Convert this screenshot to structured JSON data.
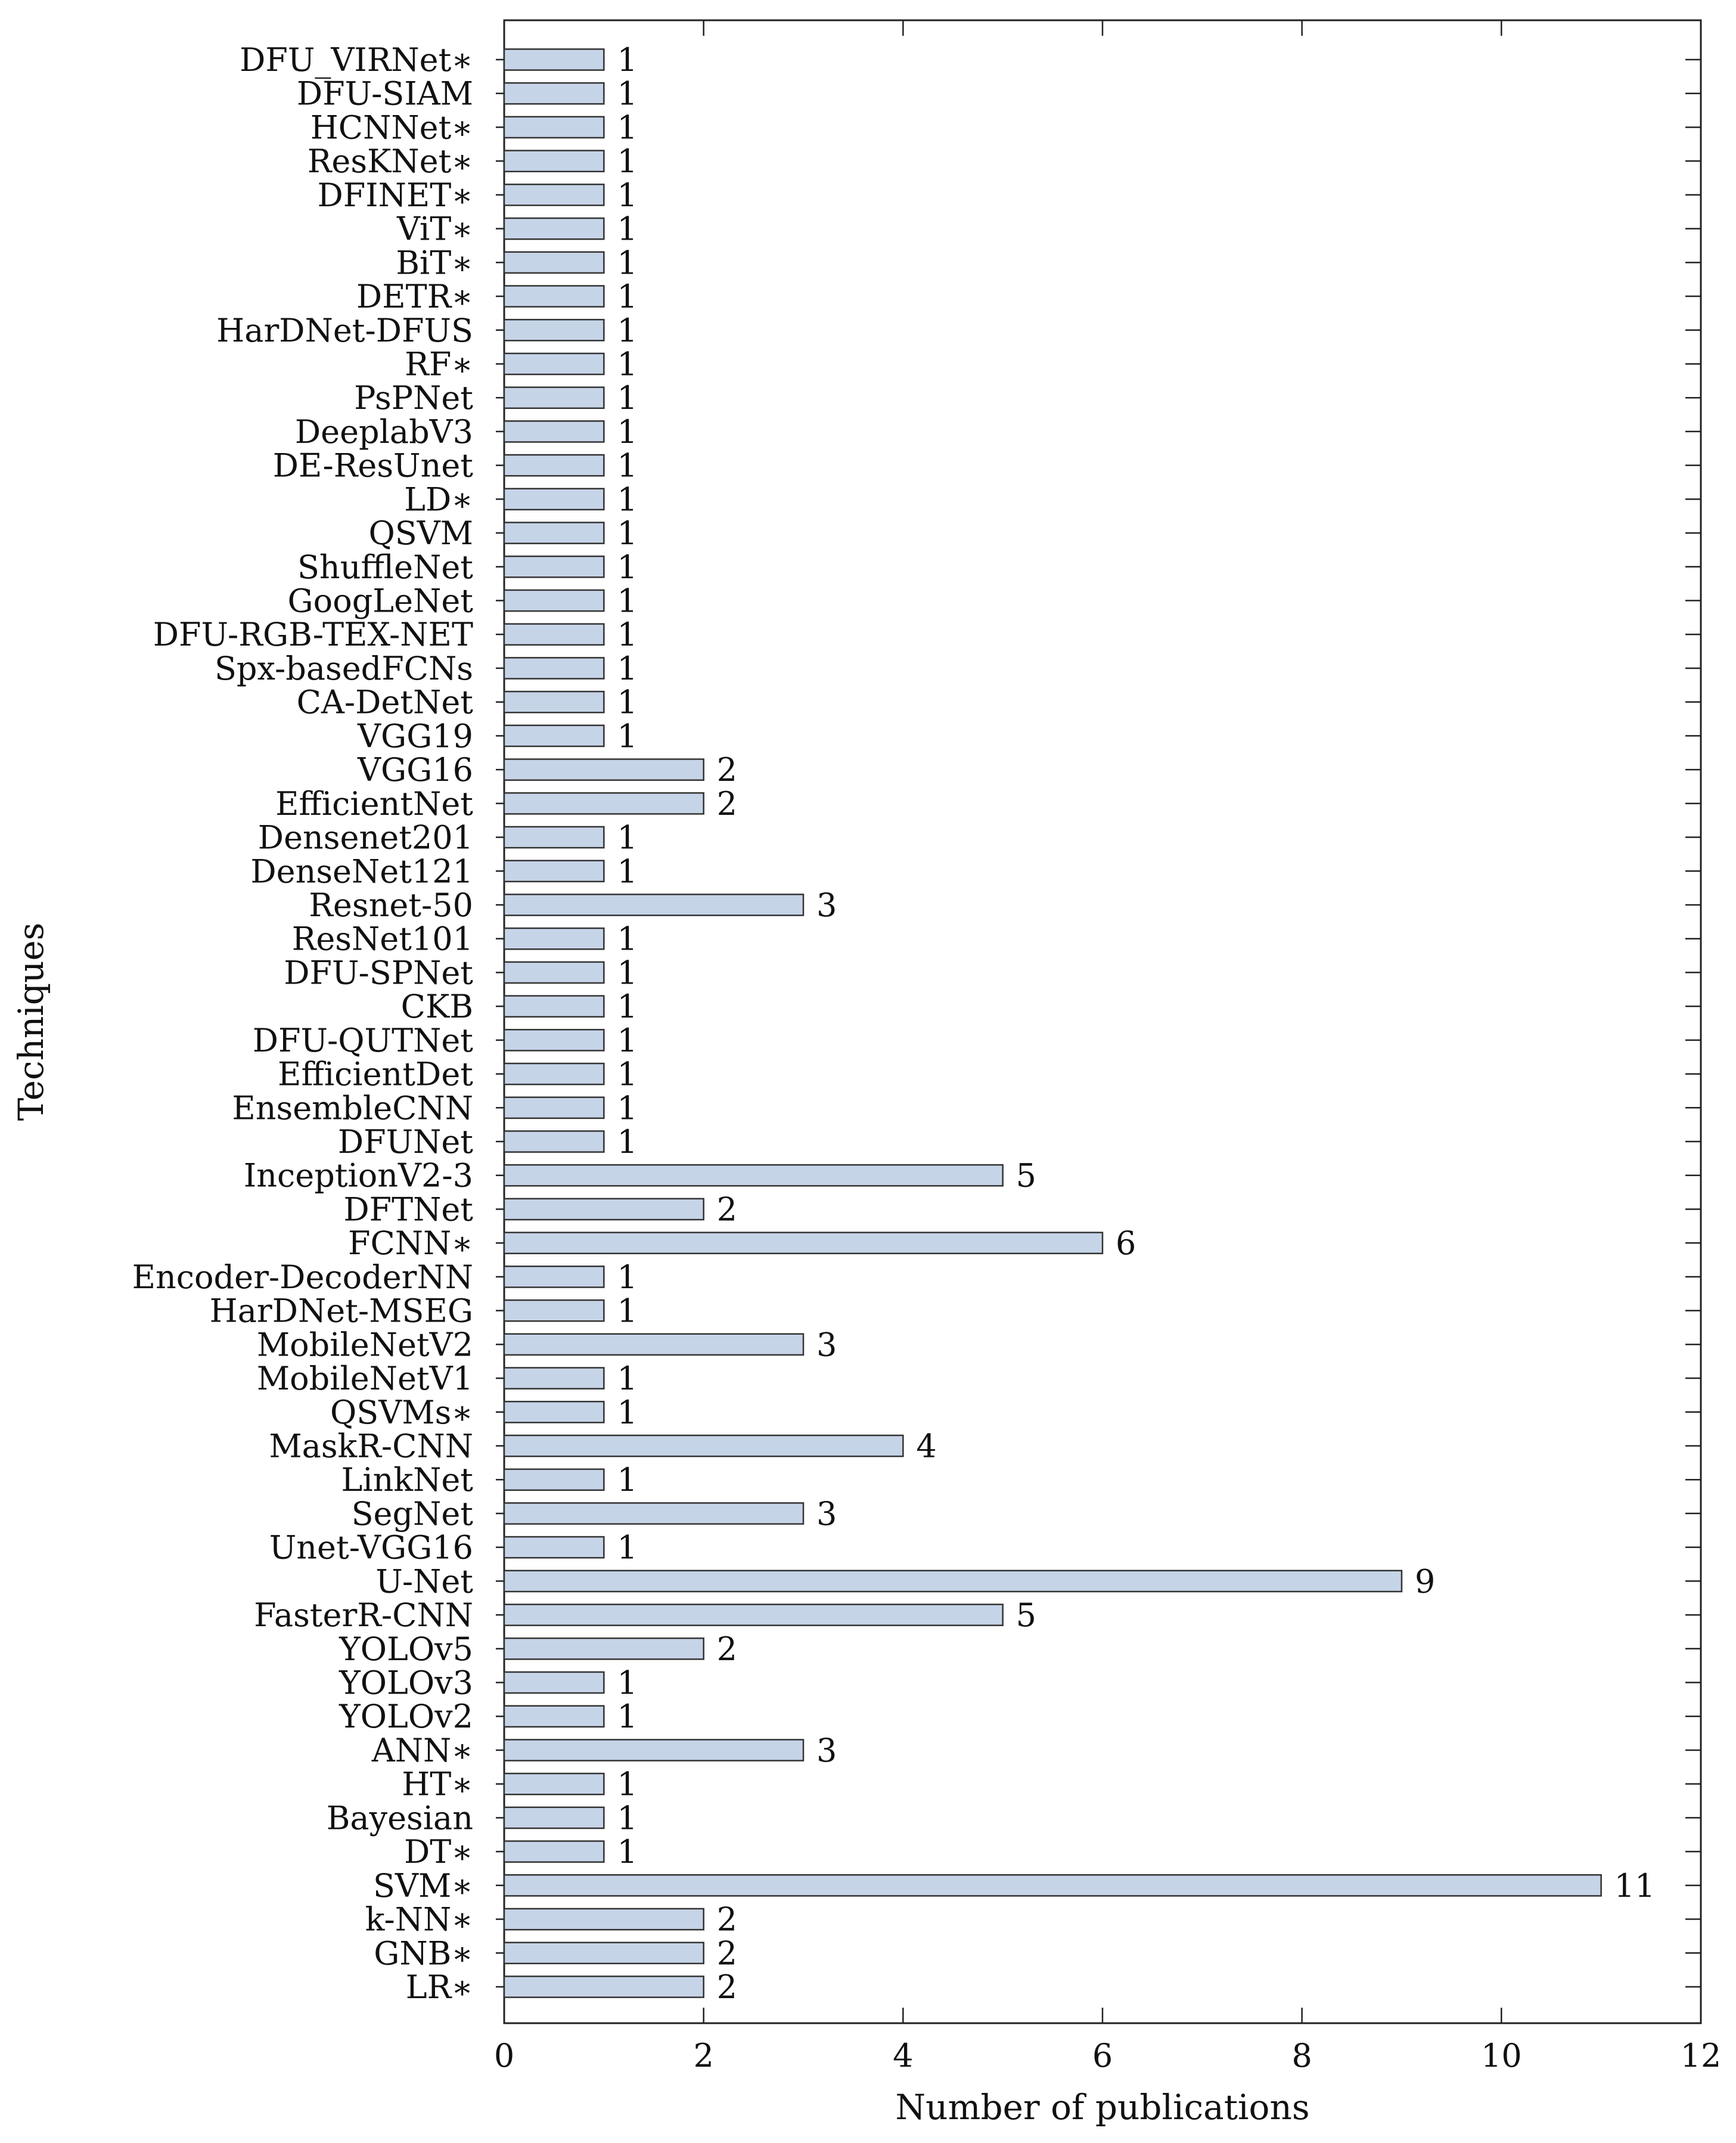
{
  "chart_data": {
    "type": "bar",
    "orientation": "horizontal",
    "title": "",
    "xlabel": "Number of publications",
    "ylabel": "Techniques",
    "xlim": [
      0,
      12
    ],
    "xticks": [
      0,
      2,
      4,
      6,
      8,
      10,
      12
    ],
    "grid": false,
    "bar_color": "#c6d4e8",
    "bar_edge_color": "#333333",
    "categories": [
      "DFU_VIRNet∗",
      "DFU-SIAM",
      "HCNNet∗",
      "ResKNet∗",
      "DFINET∗",
      "ViT∗",
      "BiT∗",
      "DETR∗",
      "HarDNet-DFUS",
      "RF∗",
      "PsPNet",
      "DeeplabV3",
      "DE-ResUnet",
      "LD∗",
      "QSVM",
      "ShuffleNet",
      "GoogLeNet",
      "DFU-RGB-TEX-NET",
      "Spx-basedFCNs",
      "CA-DetNet",
      "VGG19",
      "VGG16",
      "EfficientNet",
      "Densenet201",
      "DenseNet121",
      "Resnet-50",
      "ResNet101",
      "DFU-SPNet",
      "CKB",
      "DFU-QUTNet",
      "EfficientDet",
      "EnsembleCNN",
      "DFUNet",
      "InceptionV2-3",
      "DFTNet",
      "FCNN∗",
      "Encoder-DecoderNN",
      "HarDNet-MSEG",
      "MobileNetV2",
      "MobileNetV1",
      "QSVMs∗",
      "MaskR-CNN",
      "LinkNet",
      "SegNet",
      "Unet-VGG16",
      "U-Net",
      "FasterR-CNN",
      "YOLOv5",
      "YOLOv3",
      "YOLOv2",
      "ANN∗",
      "HT∗",
      "Bayesian",
      "DT∗",
      "SVM∗",
      "k-NN∗",
      "GNB∗",
      "LR∗"
    ],
    "values": [
      1,
      1,
      1,
      1,
      1,
      1,
      1,
      1,
      1,
      1,
      1,
      1,
      1,
      1,
      1,
      1,
      1,
      1,
      1,
      1,
      1,
      2,
      2,
      1,
      1,
      3,
      1,
      1,
      1,
      1,
      1,
      1,
      1,
      5,
      2,
      6,
      1,
      1,
      3,
      1,
      1,
      4,
      1,
      3,
      1,
      9,
      5,
      2,
      1,
      1,
      3,
      1,
      1,
      1,
      11,
      2,
      2,
      2
    ]
  }
}
